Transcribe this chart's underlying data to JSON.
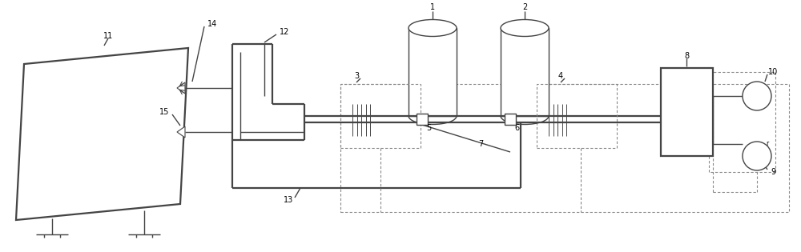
{
  "bg_color": "#ffffff",
  "lc": "#444444",
  "dc": "#888888",
  "figsize": [
    10.0,
    3.15
  ],
  "dpi": 100
}
